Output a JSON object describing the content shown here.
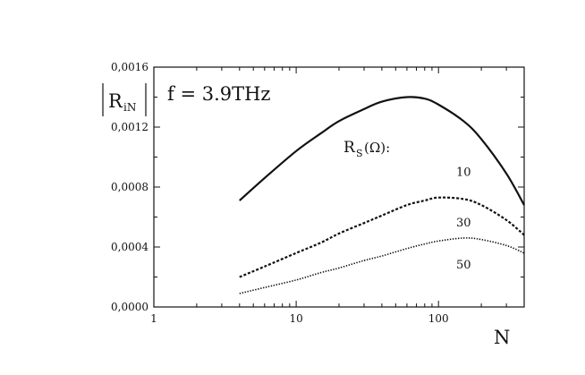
{
  "chart_data": {
    "type": "line",
    "x_scale": "log",
    "xlim": [
      1,
      400
    ],
    "ylim": [
      0,
      0.0016
    ],
    "xticks": [
      1,
      10,
      100
    ],
    "xtick_labels": [
      "1",
      "10",
      "100"
    ],
    "yticks": [
      0,
      0.0004,
      0.0008,
      0.0012,
      0.0016
    ],
    "ytick_labels": [
      "0,0000",
      "0,0004",
      "0,0008",
      "0,0012",
      "0,0016"
    ],
    "xlabel": "N",
    "ylabel_main": "R",
    "ylabel_sub": "iN",
    "annotation": "f = 3.9THz",
    "legend_title_main": "R",
    "legend_title_sub": "S",
    "legend_title_tail": "(Ω):",
    "grid": false,
    "series": [
      {
        "name": "10",
        "style": "solid",
        "x": [
          4,
          6,
          10,
          15,
          20,
          30,
          40,
          60,
          80,
          100,
          150,
          200,
          300,
          400
        ],
        "y": [
          0.00071,
          0.00086,
          0.00104,
          0.00116,
          0.00124,
          0.00132,
          0.00137,
          0.0014,
          0.00139,
          0.00135,
          0.00124,
          0.00112,
          0.00089,
          0.00068
        ]
      },
      {
        "name": "30",
        "style": "dashed",
        "x": [
          4,
          6,
          10,
          15,
          20,
          30,
          40,
          60,
          80,
          100,
          150,
          200,
          300,
          400
        ],
        "y": [
          0.0002,
          0.00027,
          0.00036,
          0.00043,
          0.00049,
          0.00056,
          0.00061,
          0.00068,
          0.00071,
          0.00073,
          0.00072,
          0.00068,
          0.00058,
          0.00048
        ]
      },
      {
        "name": "50",
        "style": "dotted",
        "x": [
          4,
          6,
          10,
          15,
          20,
          30,
          40,
          60,
          80,
          100,
          150,
          200,
          300,
          400
        ],
        "y": [
          9e-05,
          0.00013,
          0.00018,
          0.00023,
          0.00026,
          0.00031,
          0.00034,
          0.00039,
          0.00042,
          0.00044,
          0.00046,
          0.00045,
          0.00041,
          0.00036
        ]
      }
    ]
  }
}
